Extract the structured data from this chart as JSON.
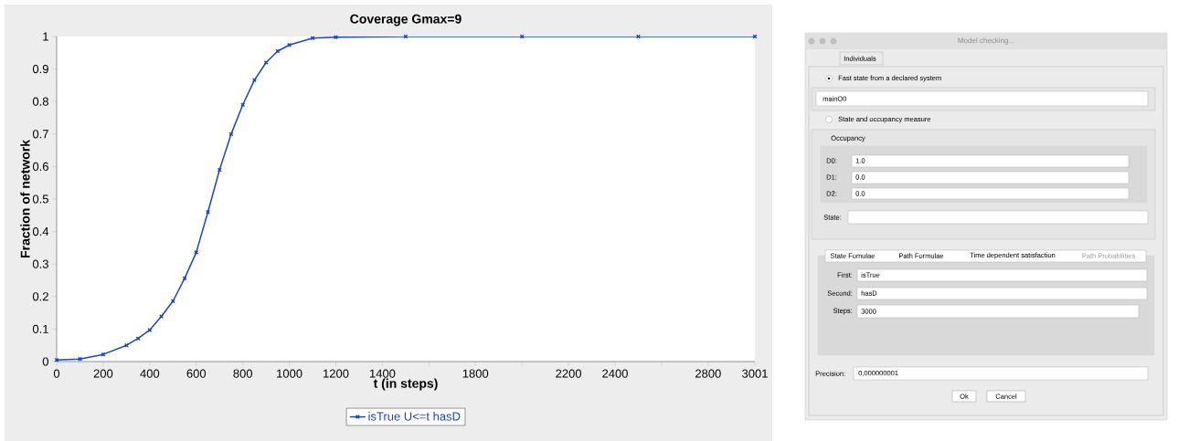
{
  "chart_data": [
    {
      "type": "line",
      "title": "Coverage Gmax=9",
      "xlabel": "t (in steps)",
      "ylabel": "Fraction of network",
      "x": [
        0,
        100,
        200,
        300,
        350,
        400,
        450,
        500,
        550,
        600,
        650,
        700,
        750,
        800,
        850,
        900,
        950,
        1000,
        1100,
        1200,
        1500,
        2000,
        2500,
        3001
      ],
      "series": [
        {
          "name": "isTrue U<=t hasD",
          "color": "#1a44cc",
          "values": [
            0.005,
            0.008,
            0.022,
            0.05,
            0.071,
            0.097,
            0.139,
            0.186,
            0.256,
            0.336,
            0.46,
            0.59,
            0.7,
            0.79,
            0.866,
            0.92,
            0.955,
            0.974,
            0.995,
            0.998,
            1,
            1,
            1,
            1
          ]
        }
      ],
      "xlim": [
        0,
        3001
      ],
      "ylim": [
        0,
        1
      ],
      "xticks": [
        0,
        200,
        400,
        600,
        800,
        1000,
        1200,
        1400,
        {
          "value": 1600,
          "label": null
        },
        1800,
        {
          "value": 2000,
          "label": null
        },
        2200,
        2400,
        {
          "value": 2600,
          "label": null
        },
        2800,
        3001
      ],
      "yticks": [
        0,
        0.1,
        0.2,
        0.3,
        0.4,
        0.5,
        0.6,
        0.7,
        0.8,
        0.9,
        1
      ],
      "marker": "cross",
      "legend": "bottom"
    },
    {
      "type": "other",
      "title": "Model checking...",
      "annotations": [
        "Individuals",
        "Fast state from a declared system",
        "mainO0",
        "State and occupancy measure",
        "Occupancy",
        "D0:",
        "1.0",
        "D1:",
        "0.0",
        "D2:",
        "0.0",
        "State:",
        "State Fomulae",
        "Path Formulae",
        "Time dependent satisfaction",
        "Path Probabilities",
        "First:",
        "isTrue",
        "Second:",
        "hasD",
        "Steps:",
        "3000",
        "Precision:",
        "0,000000001",
        "Ok",
        "Cancel"
      ]
    }
  ]
}
